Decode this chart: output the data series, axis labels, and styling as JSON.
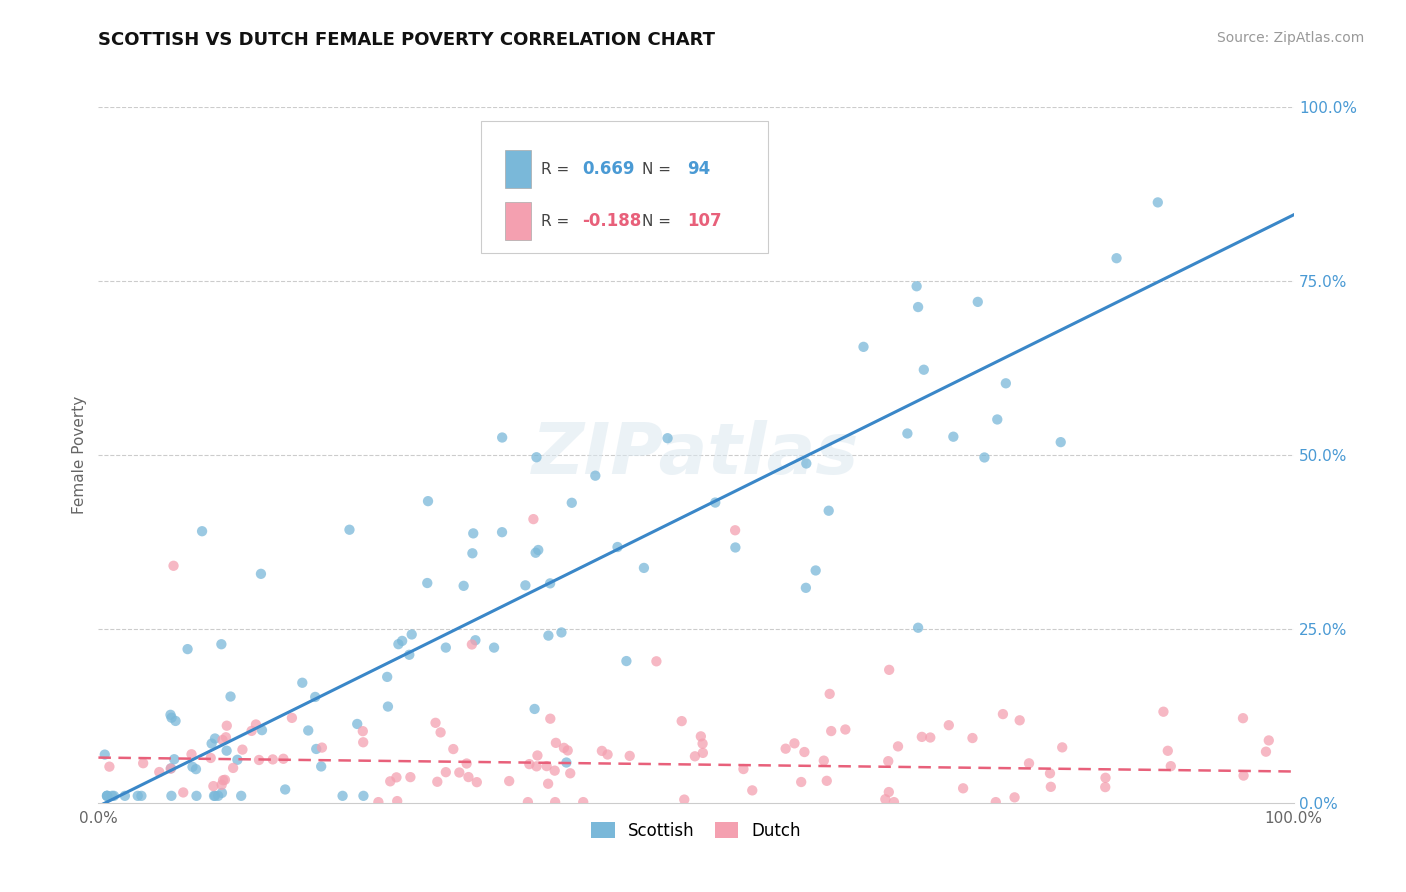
{
  "title": "SCOTTISH VS DUTCH FEMALE POVERTY CORRELATION CHART",
  "source_text": "Source: ZipAtlas.com",
  "ylabel": "Female Poverty",
  "watermark": "ZIPatlas",
  "legend_entries": [
    {
      "label": "Scottish",
      "R": 0.669,
      "N": 94,
      "color": "#7ab8d9",
      "line_color": "#3a87c8"
    },
    {
      "label": "Dutch",
      "R": -0.188,
      "N": 107,
      "color": "#f4a0b0",
      "line_color": "#e8607a"
    }
  ],
  "title_fontsize": 13,
  "source_fontsize": 10,
  "scatter_alpha": 0.75,
  "scatter_size": 55,
  "background_color": "#ffffff",
  "grid_color": "#cccccc",
  "right_ytick_labels": [
    "0.0%",
    "25.0%",
    "50.0%",
    "75.0%",
    "100.0%"
  ],
  "right_ytick_values": [
    0.0,
    0.25,
    0.5,
    0.75,
    1.0
  ],
  "blue_color": "#7ab8d9",
  "pink_color": "#f4a0b0",
  "blue_line_color": "#3a87c8",
  "pink_line_color": "#e8607a",
  "blue_text_color": "#4a9ad4",
  "pink_text_color": "#e8607a"
}
